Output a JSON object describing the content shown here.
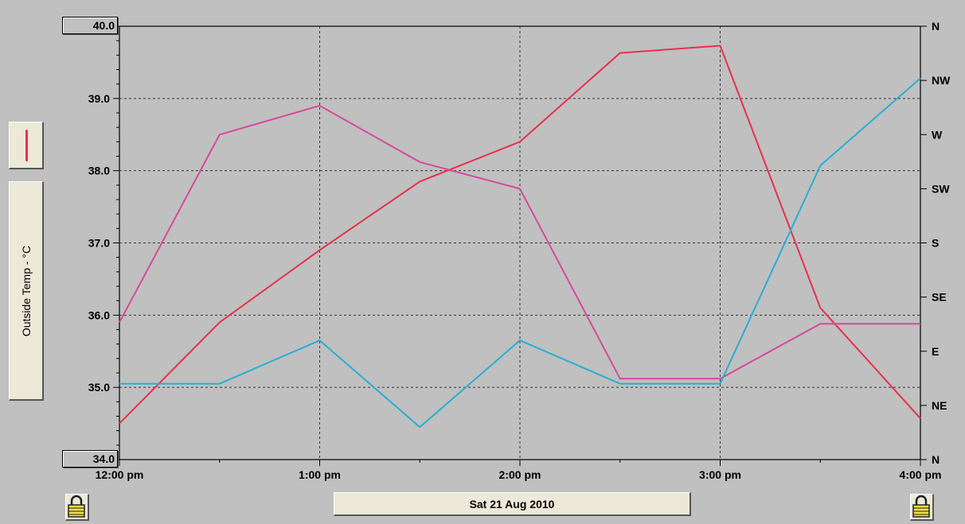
{
  "chart_data": {
    "type": "line",
    "title": "",
    "xlabel": "Sat 21 Aug 2010",
    "ylabel": "Outside Temp - °C",
    "x": [
      "12:00 pm",
      "12:30 pm",
      "1:00 pm",
      "1:30 pm",
      "2:00 pm",
      "2:30 pm",
      "3:00 pm",
      "3:30 pm",
      "4:00 pm"
    ],
    "x_tick_labels": [
      "12:00 pm",
      "1:00 pm",
      "2:00 pm",
      "3:00 pm",
      "4:00 pm"
    ],
    "ylim": [
      34.0,
      40.0
    ],
    "y_tick_labels": [
      "40.0",
      "39.0",
      "38.0",
      "37.0",
      "36.0",
      "35.0",
      "34.0"
    ],
    "y2_tick_labels": [
      "N",
      "NW",
      "W",
      "SW",
      "S",
      "SE",
      "E",
      "NE",
      "N"
    ],
    "grid": true,
    "series": [
      {
        "name": "",
        "color": "#e8304c",
        "axis": "left",
        "values": [
          34.5,
          35.9,
          36.9,
          37.85,
          38.4,
          39.63,
          39.73,
          36.1,
          34.57
        ]
      },
      {
        "name": "",
        "color": "#d8489c",
        "axis": "right",
        "values": [
          35.9,
          38.5,
          38.9,
          38.12,
          37.75,
          35.12,
          35.12,
          35.88,
          35.88
        ]
      },
      {
        "name": "",
        "color": "#27aed4",
        "axis": "right",
        "values": [
          35.05,
          35.05,
          35.65,
          34.45,
          35.65,
          35.05,
          35.05,
          38.07,
          39.28
        ]
      }
    ]
  },
  "legend": {
    "swatch_color": "#e8304c"
  },
  "controls": {
    "ymax_value": "40.0",
    "ymin_value": "34.0",
    "date_label": "Sat 21 Aug 2010",
    "y_axis_label": "Outside Temp - °C",
    "lock_left_icon": "padlock-icon",
    "lock_right_icon": "padlock-icon"
  }
}
